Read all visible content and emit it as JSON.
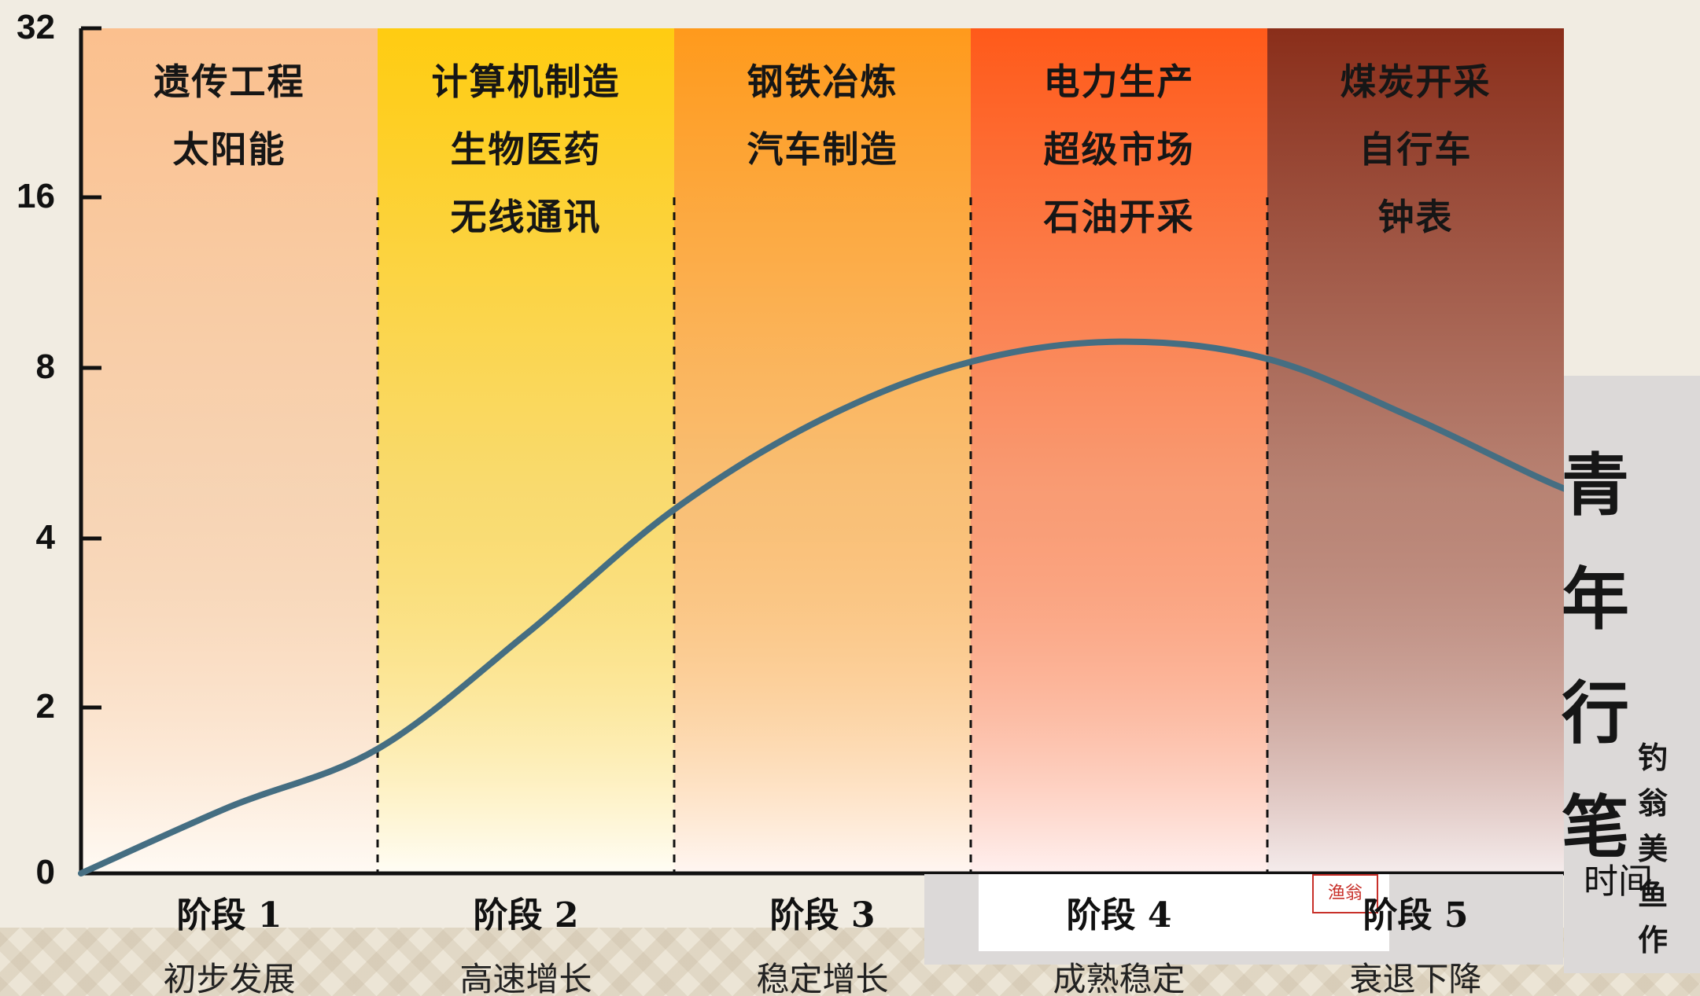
{
  "chart_data": {
    "type": "line",
    "yscale": "log2",
    "yticks": [
      "0",
      "2",
      "4",
      "8",
      "16",
      "32"
    ],
    "xlabel": "时间",
    "ylabel": "",
    "title": "",
    "x": [
      0,
      0.5,
      1,
      1.5,
      2,
      2.5,
      3,
      3.5,
      4,
      4.5,
      5,
      5.3
    ],
    "values": [
      0,
      0.8,
      1.5,
      2.7,
      4.5,
      6.5,
      8.2,
      8.9,
      8.3,
      6.5,
      4.9,
      4.4
    ],
    "line_color": "#456e82",
    "stages": [
      {
        "label": "阶段 1",
        "desc": "初步发展",
        "industries": [
          "遗传工程",
          "太阳能"
        ],
        "color_top": "#fbc08e",
        "color_bottom": "#fffaf4"
      },
      {
        "label": "阶段 2",
        "desc": "高速增长",
        "industries": [
          "计算机制造",
          "生物医药",
          "无线通讯"
        ],
        "color_top": "#ffcc11",
        "color_bottom": "#fffdf5"
      },
      {
        "label": "阶段 3",
        "desc": "稳定增长",
        "industries": [
          "钢铁冶炼",
          "汽车制造"
        ],
        "color_top": "#ff9a1c",
        "color_bottom": "#fff6f2"
      },
      {
        "label": "阶段 4",
        "desc": "成熟稳定",
        "industries": [
          "电力生产",
          "超级市场",
          "石油开采"
        ],
        "color_top": "#ff5a1a",
        "color_bottom": "#fff0ef"
      },
      {
        "label": "阶段 5",
        "desc": "衰退下降",
        "industries": [
          "煤炭开采",
          "自行车",
          "钟表"
        ],
        "color_top": "#8a2e1a",
        "color_bottom": "#f5ecec"
      }
    ]
  },
  "decor": {
    "calligraphy_big": "青年行笔",
    "calligraphy_small": "钓翁美鱼作",
    "seal_text": "渔翁"
  }
}
